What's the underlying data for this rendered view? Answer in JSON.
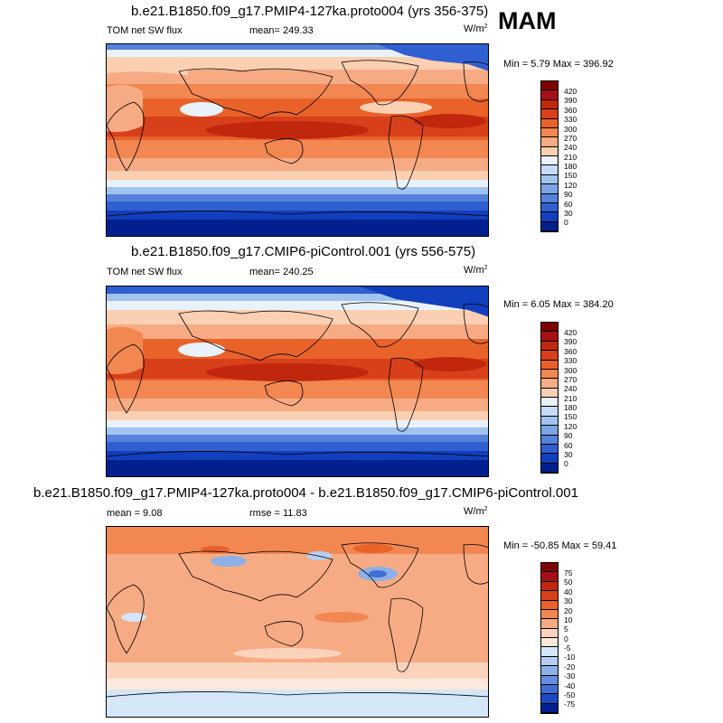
{
  "season": "MAM",
  "panels": [
    {
      "title": "b.e21.B1850.f09_g17.PMIP4-127ka.proto004 (yrs 356-375)",
      "left_label": "TOM net SW flux",
      "center_label": "mean= 249.33",
      "units": "W/m",
      "units_sup": "2",
      "minmax": "Min =   5.79 Max = 396.92",
      "colorbar": {
        "labels": [
          "420",
          "390",
          "360",
          "330",
          "300",
          "270",
          "240",
          "210",
          "180",
          "150",
          "120",
          "90",
          "60",
          "30",
          "0"
        ],
        "colors": [
          "#7f0000",
          "#a50f15",
          "#c1270d",
          "#d7401a",
          "#e8622a",
          "#f28752",
          "#f7ab84",
          "#fbcfb2",
          "#e9f2fb",
          "#c6dbf5",
          "#a2c3ee",
          "#7ba4e4",
          "#5582db",
          "#2f5fd0",
          "#113fbe",
          "#00208f"
        ]
      }
    },
    {
      "title": "b.e21.B1850.f09_g17.CMIP6-piControl.001 (yrs 556-575)",
      "left_label": "TOM net SW flux",
      "center_label": "mean= 240.25",
      "units": "W/m",
      "units_sup": "2",
      "minmax": "Min =   6.05 Max = 384.20",
      "colorbar": {
        "labels": [
          "420",
          "390",
          "360",
          "330",
          "300",
          "270",
          "240",
          "210",
          "180",
          "150",
          "120",
          "90",
          "60",
          "30",
          "0"
        ],
        "colors": [
          "#7f0000",
          "#a50f15",
          "#c1270d",
          "#d7401a",
          "#e8622a",
          "#f28752",
          "#f7ab84",
          "#fbcfb2",
          "#e9f2fb",
          "#c6dbf5",
          "#a2c3ee",
          "#7ba4e4",
          "#5582db",
          "#2f5fd0",
          "#113fbe",
          "#00208f"
        ]
      }
    },
    {
      "title": "b.e21.B1850.f09_g17.PMIP4-127ka.proto004 - b.e21.B1850.f09_g17.CMIP6-piControl.001",
      "left_label": "mean =   9.08",
      "center_label": "rmse =  11.83",
      "units": "W/m",
      "units_sup": "2",
      "minmax": "Min = -50.85 Max =  59.41",
      "colorbar": {
        "labels": [
          "75",
          "50",
          "40",
          "30",
          "20",
          "10",
          "5",
          "0",
          "-5",
          "-10",
          "-20",
          "-30",
          "-40",
          "-50",
          "-75"
        ],
        "colors": [
          "#7f0000",
          "#a50f15",
          "#c1270d",
          "#d7401a",
          "#e8622a",
          "#f28752",
          "#f7ab84",
          "#fbd3bd",
          "#fde8dc",
          "#d5e6f8",
          "#b4cff2",
          "#8db0e8",
          "#6690df",
          "#3f6fd4",
          "#1a49c4",
          "#00208f"
        ]
      }
    }
  ],
  "map_colors": {
    "deep_red": "#c1270d",
    "red": "#e8622a",
    "orange": "#f28752",
    "peach": "#f7ab84",
    "light_peach": "#fbcfb2",
    "pale_blue": "#e9f2fb",
    "light_blue": "#a2c3ee",
    "mid_blue": "#5582db",
    "blue": "#2f5fd0",
    "dark_blue": "#113fbe",
    "navy": "#00208f",
    "diff_bg": "#f7ab84",
    "diff_light": "#fbd3bd",
    "diff_pale": "#fde8dc",
    "diff_blue": "#8db0e8"
  }
}
